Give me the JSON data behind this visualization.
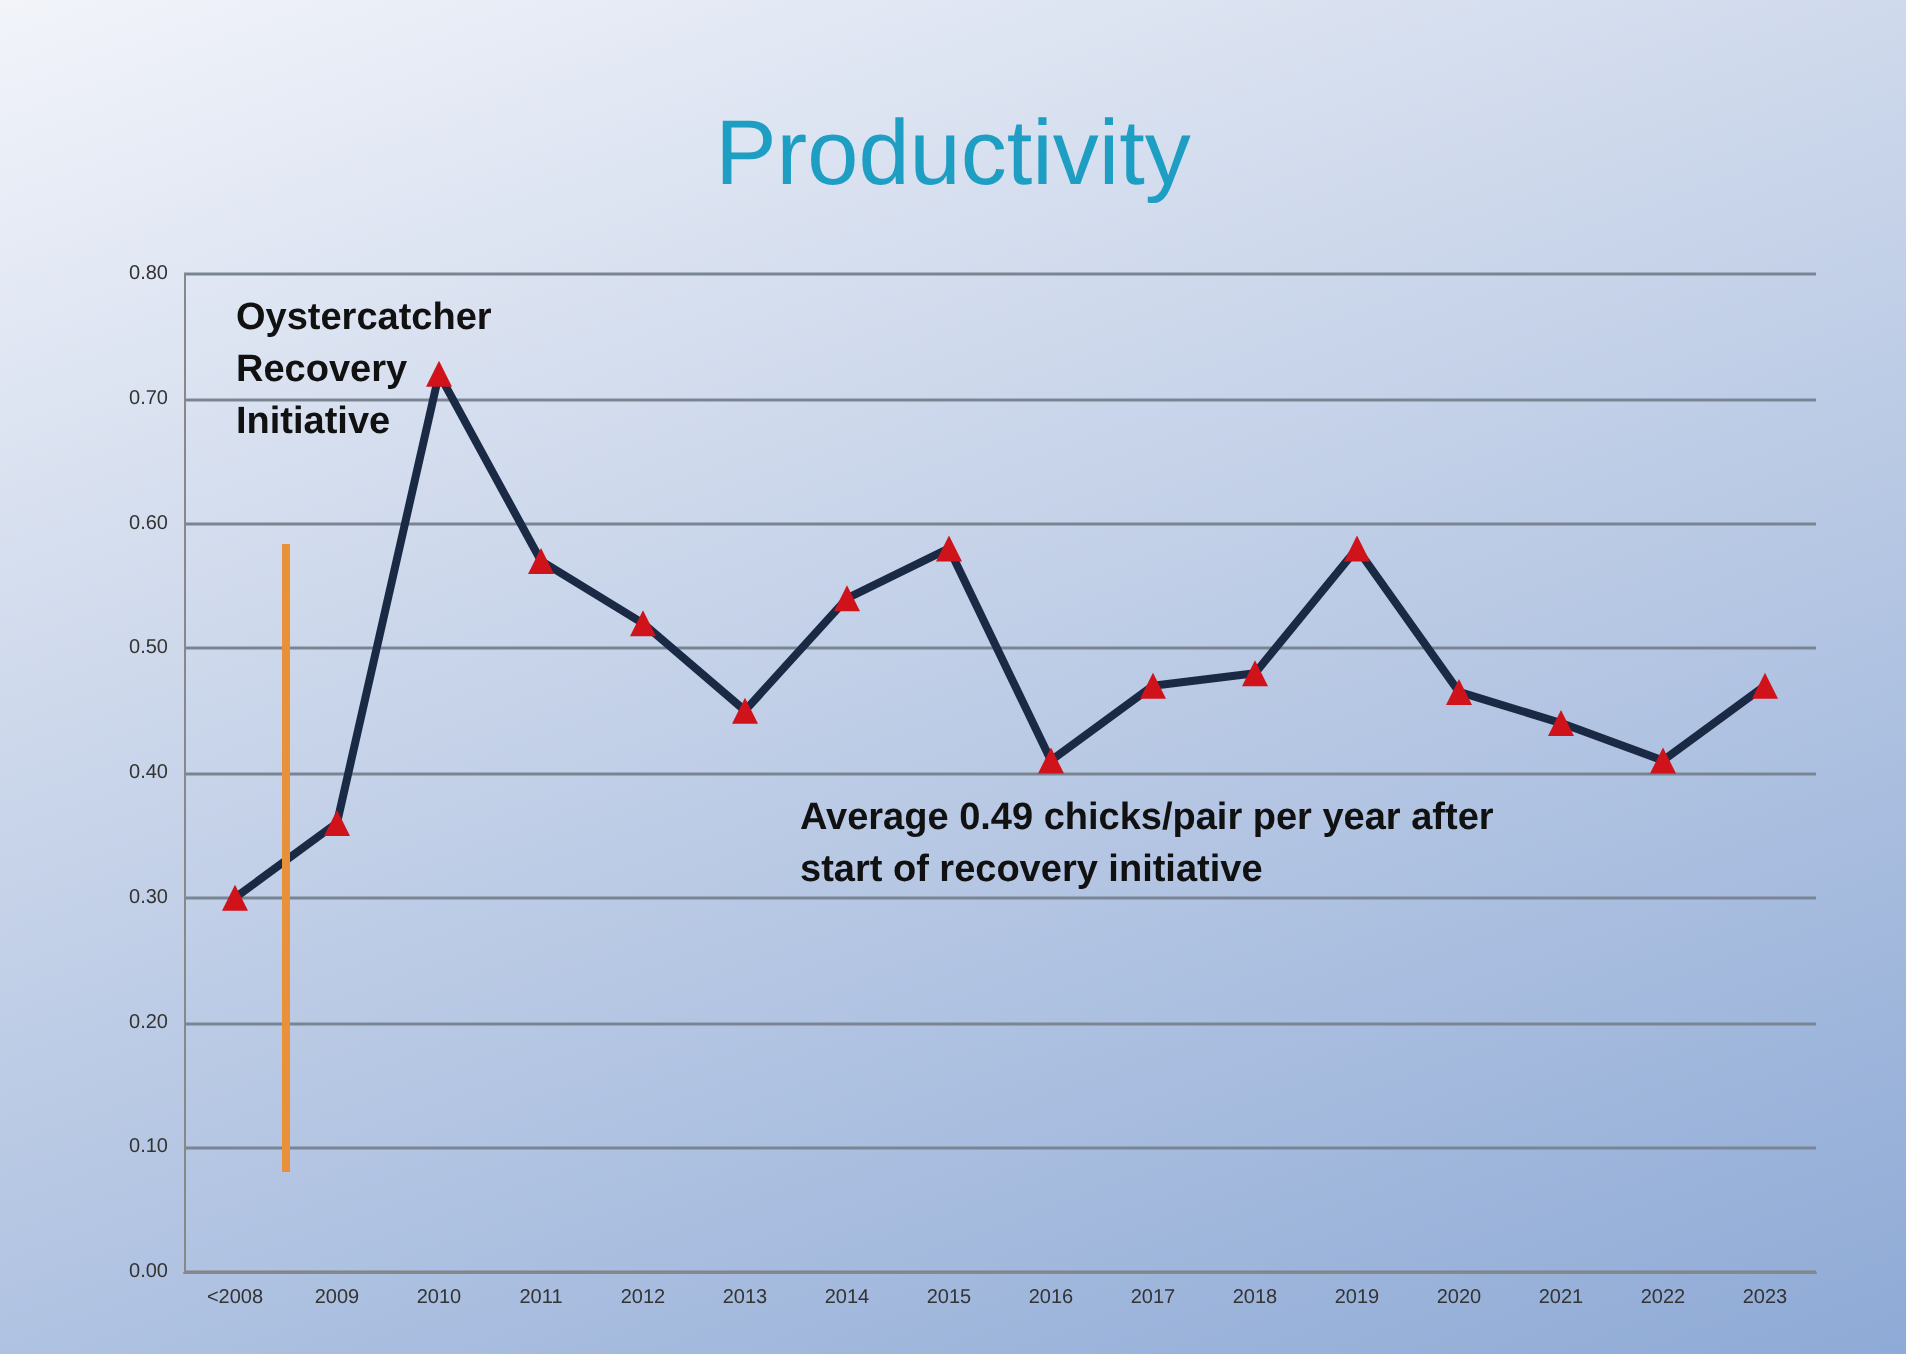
{
  "chart_data": {
    "type": "line",
    "title": "Productivity",
    "categories": [
      "<2008",
      "2009",
      "2010",
      "2011",
      "2012",
      "2013",
      "2014",
      "2015",
      "2016",
      "2017",
      "2018",
      "2019",
      "2020",
      "2021",
      "2022",
      "2023"
    ],
    "series": [
      {
        "color": "#1b2a44",
        "values": [
          0.3,
          0.36,
          0.72,
          0.57,
          0.52,
          0.45,
          0.54,
          0.58,
          0.41,
          0.47,
          0.48,
          0.58,
          0.465,
          0.44,
          0.41,
          0.47
        ]
      }
    ],
    "ylim": [
      0,
      0.8
    ],
    "yticks": [
      {
        "value": 0,
        "label": "0.00"
      },
      {
        "value": 0.1,
        "label": "0.10"
      },
      {
        "value": 0.2,
        "label": "0.20"
      },
      {
        "value": 0.3,
        "label": "0.30"
      },
      {
        "value": 0.4,
        "label": "0.40"
      },
      {
        "value": 0.5,
        "label": "0.50"
      },
      {
        "value": 0.6,
        "label": "0.60"
      },
      {
        "value": 0.7,
        "label": "0.70"
      },
      {
        "value": 0.8,
        "label": "0.80"
      }
    ],
    "annotations": [
      "Oystercatcher Recovery Initiative",
      "Average 0.49 chicks/pair per year after start of recovery initiative"
    ],
    "grid": "y",
    "marker": "triangle",
    "line_style": "solid"
  }
}
